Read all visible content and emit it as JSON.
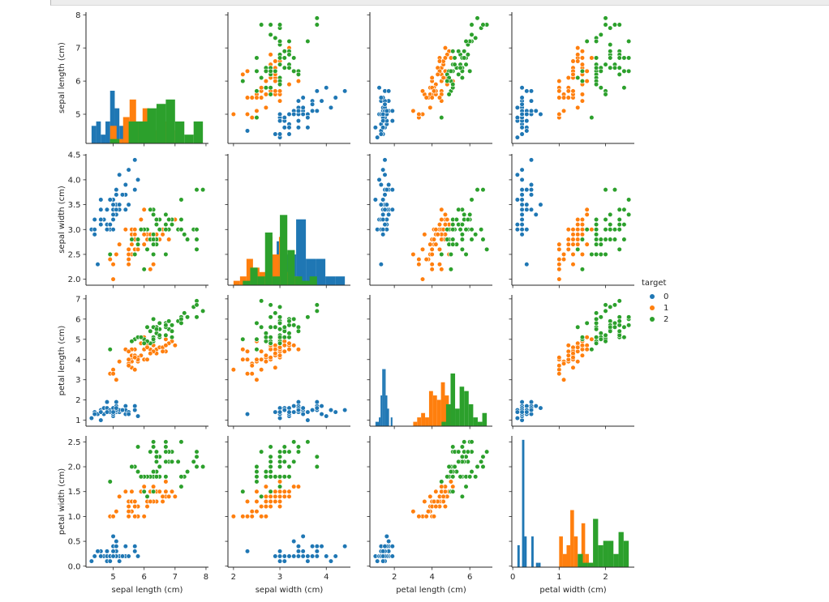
{
  "chart_data": {
    "type": "scatter",
    "subtype": "pairplot",
    "diagonal": "histogram",
    "grid": "off",
    "legend": {
      "title": "target",
      "position": "right",
      "entries": [
        {
          "label": "0",
          "color": "#1f77b4"
        },
        {
          "label": "1",
          "color": "#ff7f0e"
        },
        {
          "label": "2",
          "color": "#2ca02c"
        }
      ]
    },
    "variables": [
      {
        "key": "sepal_length",
        "label": "sepal length (cm)",
        "lim": [
          4.12,
          8.08
        ],
        "x_ticks": [
          5,
          6,
          7,
          8
        ],
        "x_tick_decimals": 0,
        "y_ticks": [
          5,
          6,
          7,
          8
        ],
        "y_tick_decimals": 0
      },
      {
        "key": "sepal_width",
        "label": "sepal width (cm)",
        "lim": [
          1.88,
          4.52
        ],
        "x_ticks": [
          2,
          3,
          4
        ],
        "x_tick_decimals": 0,
        "y_ticks": [
          2.0,
          2.5,
          3.0,
          3.5,
          4.0,
          4.5
        ],
        "y_tick_decimals": 1
      },
      {
        "key": "petal_length",
        "label": "petal length (cm)",
        "lim": [
          0.705,
          7.195
        ],
        "x_ticks": [
          2,
          4,
          6
        ],
        "x_tick_decimals": 0,
        "y_ticks": [
          1,
          2,
          3,
          4,
          5,
          6,
          7
        ],
        "y_tick_decimals": 0
      },
      {
        "key": "petal_width",
        "label": "petal width (cm)",
        "lim": [
          -0.02,
          2.62
        ],
        "x_ticks": [
          0,
          1,
          2
        ],
        "x_tick_decimals": 0,
        "y_ticks": [
          0.0,
          0.5,
          1.0,
          1.5,
          2.0,
          2.5
        ],
        "y_tick_decimals": 1
      }
    ],
    "groups": [
      {
        "target": "0",
        "color": "#1f77b4",
        "values": {
          "sepal_length": [
            5.1,
            4.9,
            4.7,
            4.6,
            5.0,
            5.4,
            4.6,
            5.0,
            4.4,
            4.9,
            5.4,
            4.8,
            4.8,
            4.3,
            5.8,
            5.7,
            5.4,
            5.1,
            5.7,
            5.1,
            5.4,
            5.1,
            4.6,
            5.1,
            4.8,
            5.0,
            5.0,
            5.2,
            5.2,
            4.7,
            4.8,
            5.4,
            5.2,
            5.5,
            4.9,
            5.0,
            5.5,
            4.9,
            4.4,
            5.1,
            5.0,
            4.5,
            4.4,
            5.0,
            5.1,
            4.8,
            5.1,
            4.6,
            5.3,
            5.0
          ],
          "sepal_width": [
            3.5,
            3.0,
            3.2,
            3.1,
            3.6,
            3.9,
            3.4,
            3.4,
            2.9,
            3.1,
            3.7,
            3.4,
            3.0,
            3.0,
            4.0,
            4.4,
            3.9,
            3.5,
            3.8,
            3.8,
            3.4,
            3.7,
            3.6,
            3.3,
            3.4,
            3.0,
            3.4,
            3.5,
            3.4,
            3.2,
            3.1,
            3.4,
            4.1,
            4.2,
            3.1,
            3.2,
            3.5,
            3.6,
            3.0,
            3.4,
            3.5,
            2.3,
            3.2,
            3.5,
            3.8,
            3.0,
            3.8,
            3.2,
            3.7,
            3.3
          ],
          "petal_length": [
            1.4,
            1.4,
            1.3,
            1.5,
            1.4,
            1.7,
            1.4,
            1.5,
            1.4,
            1.5,
            1.5,
            1.6,
            1.4,
            1.1,
            1.2,
            1.5,
            1.3,
            1.4,
            1.7,
            1.5,
            1.7,
            1.5,
            1.0,
            1.7,
            1.9,
            1.6,
            1.6,
            1.5,
            1.4,
            1.6,
            1.6,
            1.5,
            1.5,
            1.4,
            1.5,
            1.2,
            1.3,
            1.4,
            1.3,
            1.5,
            1.3,
            1.3,
            1.3,
            1.6,
            1.9,
            1.4,
            1.6,
            1.4,
            1.5,
            1.4
          ],
          "petal_width": [
            0.2,
            0.2,
            0.2,
            0.2,
            0.2,
            0.4,
            0.3,
            0.2,
            0.2,
            0.1,
            0.2,
            0.2,
            0.1,
            0.1,
            0.2,
            0.4,
            0.4,
            0.3,
            0.3,
            0.3,
            0.2,
            0.4,
            0.2,
            0.5,
            0.2,
            0.2,
            0.4,
            0.2,
            0.2,
            0.2,
            0.2,
            0.4,
            0.1,
            0.2,
            0.2,
            0.2,
            0.2,
            0.1,
            0.2,
            0.2,
            0.3,
            0.3,
            0.2,
            0.6,
            0.4,
            0.3,
            0.2,
            0.2,
            0.2,
            0.2
          ]
        }
      },
      {
        "target": "1",
        "color": "#ff7f0e",
        "values": {
          "sepal_length": [
            7.0,
            6.4,
            6.9,
            5.5,
            6.5,
            5.7,
            6.3,
            4.9,
            6.6,
            5.2,
            5.0,
            5.9,
            6.0,
            6.1,
            5.6,
            6.7,
            5.6,
            5.8,
            6.2,
            5.6,
            5.9,
            6.1,
            6.3,
            6.1,
            6.4,
            6.6,
            6.8,
            6.7,
            6.0,
            5.7,
            5.5,
            5.5,
            5.8,
            6.0,
            5.4,
            6.0,
            6.7,
            6.3,
            5.6,
            5.5,
            5.5,
            6.1,
            5.8,
            5.0,
            5.6,
            5.7,
            5.7,
            6.2,
            5.1,
            5.7
          ],
          "sepal_width": [
            3.2,
            3.2,
            3.1,
            2.3,
            2.8,
            2.8,
            3.3,
            2.4,
            2.9,
            2.7,
            2.0,
            3.0,
            2.2,
            2.9,
            2.9,
            3.1,
            3.0,
            2.7,
            2.2,
            2.5,
            3.2,
            2.8,
            2.5,
            2.8,
            2.9,
            3.0,
            2.8,
            3.0,
            2.9,
            2.6,
            2.4,
            2.4,
            2.7,
            2.7,
            3.0,
            3.4,
            3.1,
            2.3,
            3.0,
            2.5,
            2.6,
            3.0,
            2.6,
            2.3,
            2.7,
            3.0,
            2.9,
            2.9,
            2.5,
            2.8
          ],
          "petal_length": [
            4.7,
            4.5,
            4.9,
            4.0,
            4.6,
            4.5,
            4.7,
            3.3,
            4.6,
            3.9,
            3.5,
            4.2,
            4.0,
            4.7,
            3.6,
            4.4,
            4.5,
            4.1,
            4.5,
            3.9,
            4.8,
            4.0,
            4.9,
            4.7,
            4.3,
            4.4,
            4.8,
            5.0,
            4.5,
            3.5,
            3.8,
            3.7,
            3.9,
            5.1,
            4.5,
            4.5,
            4.7,
            4.4,
            4.1,
            4.0,
            4.4,
            4.6,
            4.0,
            3.3,
            4.2,
            4.2,
            4.2,
            4.3,
            3.0,
            4.1
          ],
          "petal_width": [
            1.4,
            1.5,
            1.5,
            1.3,
            1.5,
            1.3,
            1.6,
            1.0,
            1.3,
            1.4,
            1.0,
            1.5,
            1.0,
            1.4,
            1.3,
            1.4,
            1.5,
            1.0,
            1.5,
            1.1,
            1.8,
            1.3,
            1.5,
            1.2,
            1.3,
            1.4,
            1.4,
            1.7,
            1.5,
            1.0,
            1.1,
            1.0,
            1.2,
            1.6,
            1.5,
            1.6,
            1.5,
            1.3,
            1.3,
            1.3,
            1.2,
            1.4,
            1.2,
            1.0,
            1.3,
            1.2,
            1.3,
            1.3,
            1.1,
            1.3
          ]
        }
      },
      {
        "target": "2",
        "color": "#2ca02c",
        "values": {
          "sepal_length": [
            6.3,
            5.8,
            7.1,
            6.3,
            6.5,
            7.6,
            4.9,
            7.3,
            6.7,
            7.2,
            6.5,
            6.4,
            6.8,
            5.7,
            5.8,
            6.4,
            6.5,
            7.7,
            7.7,
            6.0,
            6.9,
            5.6,
            7.7,
            6.3,
            6.7,
            7.2,
            6.2,
            6.1,
            6.4,
            7.2,
            7.4,
            7.9,
            6.4,
            6.3,
            6.1,
            7.7,
            6.3,
            6.4,
            6.0,
            6.9,
            6.7,
            6.9,
            5.8,
            6.8,
            6.7,
            6.7,
            6.3,
            6.5,
            6.2,
            5.9
          ],
          "sepal_width": [
            3.3,
            2.7,
            3.0,
            2.9,
            3.0,
            3.0,
            2.5,
            2.9,
            2.5,
            3.6,
            3.2,
            2.7,
            3.0,
            2.5,
            2.8,
            3.2,
            3.0,
            3.8,
            2.6,
            2.2,
            3.2,
            2.8,
            2.8,
            2.7,
            3.3,
            3.2,
            2.8,
            3.0,
            2.8,
            3.0,
            2.8,
            3.8,
            2.8,
            2.8,
            2.6,
            3.0,
            3.4,
            3.1,
            3.0,
            3.1,
            3.1,
            3.1,
            2.7,
            3.2,
            3.3,
            3.0,
            2.5,
            3.0,
            3.4,
            3.0
          ],
          "petal_length": [
            6.0,
            5.1,
            5.9,
            5.6,
            5.8,
            6.6,
            4.5,
            6.3,
            5.8,
            6.1,
            5.1,
            5.3,
            5.5,
            5.0,
            5.1,
            5.3,
            5.5,
            6.7,
            6.9,
            5.0,
            5.7,
            4.9,
            6.7,
            4.9,
            5.7,
            6.0,
            4.8,
            4.9,
            5.6,
            5.8,
            6.1,
            6.4,
            5.6,
            5.1,
            5.6,
            6.1,
            5.6,
            5.5,
            4.8,
            5.4,
            5.6,
            5.1,
            5.1,
            5.9,
            5.7,
            5.2,
            5.0,
            5.2,
            5.4,
            5.1
          ],
          "petal_width": [
            2.5,
            1.9,
            2.1,
            1.8,
            2.2,
            2.1,
            1.7,
            1.8,
            1.8,
            2.5,
            2.0,
            1.9,
            2.1,
            2.0,
            2.4,
            2.3,
            1.8,
            2.2,
            2.3,
            1.5,
            2.3,
            2.0,
            2.0,
            1.8,
            2.1,
            1.8,
            1.8,
            1.8,
            2.1,
            1.6,
            1.9,
            2.0,
            2.2,
            1.5,
            1.4,
            2.3,
            2.4,
            1.8,
            1.8,
            2.1,
            2.4,
            2.3,
            1.9,
            2.3,
            2.5,
            2.3,
            1.9,
            2.0,
            2.3,
            1.8
          ]
        }
      }
    ]
  }
}
